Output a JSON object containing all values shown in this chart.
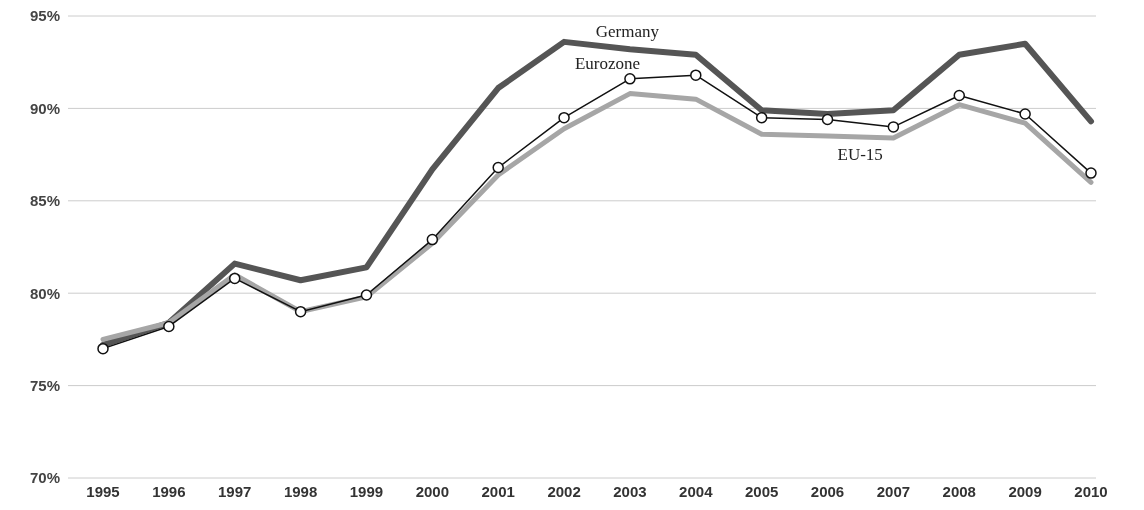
{
  "chart_data": {
    "type": "line",
    "categories": [
      "1995",
      "1996",
      "1997",
      "1998",
      "1999",
      "2000",
      "2001",
      "2002",
      "2003",
      "2004",
      "2005",
      "2006",
      "2007",
      "2008",
      "2009",
      "2010"
    ],
    "series": [
      {
        "name": "Germany",
        "color": "#555555",
        "values": [
          77.2,
          78.4,
          81.6,
          80.7,
          81.4,
          86.7,
          91.1,
          93.6,
          93.2,
          92.9,
          89.9,
          89.7,
          89.9,
          92.9,
          93.5,
          89.3
        ]
      },
      {
        "name": "EU-15",
        "color": "#a6a6a6",
        "values": [
          77.5,
          78.4,
          81.0,
          79.0,
          79.8,
          82.7,
          86.4,
          88.9,
          90.8,
          90.5,
          88.6,
          88.5,
          88.4,
          90.2,
          89.2,
          86.0
        ]
      },
      {
        "name": "Eurozone",
        "color": "#111111",
        "marker": "circle",
        "values": [
          77.0,
          78.2,
          80.8,
          79.0,
          79.9,
          82.9,
          86.8,
          89.5,
          91.6,
          91.8,
          89.5,
          89.4,
          89.0,
          90.7,
          89.7,
          86.5
        ]
      }
    ],
    "ylim": [
      70,
      95
    ],
    "yticks": [
      {
        "value": 70,
        "label": "70%"
      },
      {
        "value": 75,
        "label": "75%"
      },
      {
        "value": 80,
        "label": "80%"
      },
      {
        "value": 85,
        "label": "85%"
      },
      {
        "value": 90,
        "label": "90%"
      },
      {
        "value": 95,
        "label": "95%"
      }
    ],
    "grid": "y",
    "marker": "none"
  }
}
